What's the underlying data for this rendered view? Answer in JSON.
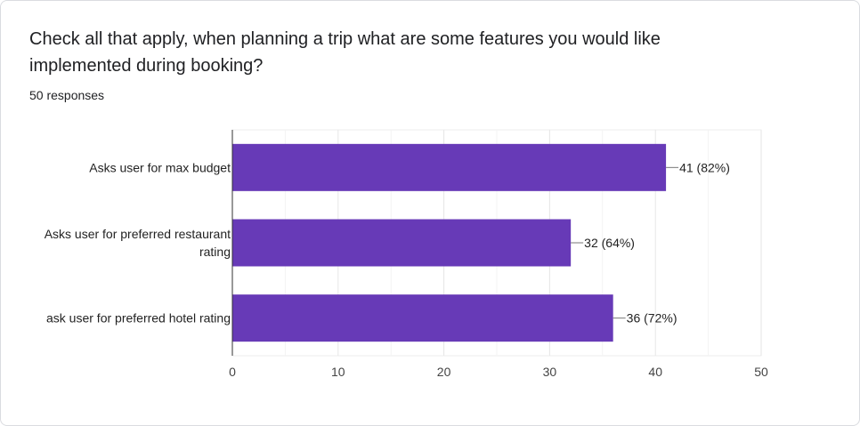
{
  "question": {
    "title_line1": "Check all that apply, when planning a trip what are some features you would like",
    "title_line2": "implemented during booking?",
    "responses": "50 responses"
  },
  "chart_data": {
    "type": "bar",
    "orientation": "horizontal",
    "categories": [
      [
        "Asks user for max budget"
      ],
      [
        "Asks user for preferred restaurant",
        "rating"
      ],
      [
        "ask user for preferred hotel rating"
      ]
    ],
    "values": [
      41,
      32,
      36
    ],
    "data_labels": [
      "41 (82%)",
      "32 (64%)",
      "36 (72%)"
    ],
    "xlim": [
      0,
      50
    ],
    "xticks": [
      0,
      10,
      20,
      30,
      40,
      50
    ],
    "grid": true,
    "bar_color": "#673ab7"
  }
}
